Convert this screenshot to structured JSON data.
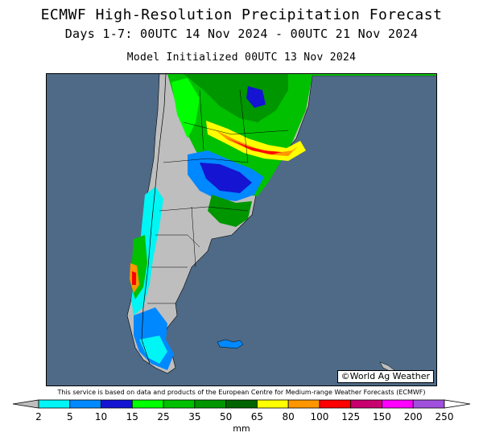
{
  "title": "ECMWF High-Resolution Precipitation Forecast",
  "subtitle": "Days 1-7: 00UTC 14 Nov 2024 - 00UTC 21 Nov 2024",
  "init_line": "Model Initialized 00UTC 13 Nov 2024",
  "credit": "©World Ag Weather",
  "disclaimer": "This service is based on data and products of the European Centre for Medium-range Weather Forecasts (ECMWF)",
  "legend": {
    "unit": "mm",
    "thresholds": [
      "2",
      "5",
      "10",
      "15",
      "25",
      "35",
      "50",
      "65",
      "80",
      "100",
      "125",
      "150",
      "200",
      "250"
    ],
    "colors": [
      "#bebebe",
      "#00f5f5",
      "#0088ff",
      "#1414d2",
      "#00ff00",
      "#00c000",
      "#009600",
      "#006400",
      "#ffff00",
      "#ff9600",
      "#ff0000",
      "#c8006e",
      "#ff00ff",
      "#a050dc",
      "#ffffff"
    ]
  },
  "colors": {
    "ocean": "#4e6a87",
    "land_dry": "#bebebe",
    "frame": "#000000"
  }
}
